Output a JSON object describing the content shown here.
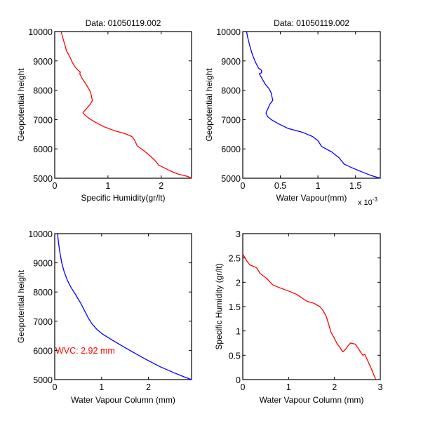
{
  "chart_data": [
    {
      "id": "tl",
      "type": "line",
      "title": "Data: 01050119.002",
      "xlabel": "Specific Humidity(gr/lt)",
      "ylabel": "Geopotential height",
      "xlim": [
        0,
        2.57
      ],
      "ylim": [
        5000,
        10000
      ],
      "xticks": [
        0,
        1,
        2
      ],
      "xtick_labels": [
        "0",
        "1",
        "2"
      ],
      "yticks": [
        5000,
        6000,
        7000,
        8000,
        9000,
        10000
      ],
      "ytick_labels": [
        "5000",
        "6000",
        "7000",
        "8000",
        "9000",
        "10000"
      ],
      "x_multiplier": "",
      "grid": false,
      "series": [
        {
          "name": "specific-humidity-profile",
          "color": "#ff0000",
          "x": [
            0.12,
            0.15,
            0.19,
            0.22,
            0.28,
            0.33,
            0.38,
            0.44,
            0.48,
            0.47,
            0.51,
            0.57,
            0.63,
            0.67,
            0.69,
            0.7,
            0.71,
            0.67,
            0.62,
            0.57,
            0.53,
            0.58,
            0.66,
            0.77,
            0.92,
            1.12,
            1.32,
            1.45,
            1.5,
            1.55,
            1.68,
            1.78,
            1.88,
            1.95,
            2.05,
            2.18,
            2.32,
            2.5,
            2.57
          ],
          "y": [
            10000,
            9800,
            9550,
            9350,
            9150,
            8950,
            8800,
            8680,
            8620,
            8560,
            8420,
            8250,
            8080,
            7950,
            7800,
            7700,
            7660,
            7530,
            7420,
            7320,
            7230,
            7130,
            7020,
            6900,
            6760,
            6620,
            6520,
            6420,
            6300,
            6100,
            5930,
            5780,
            5610,
            5450,
            5360,
            5240,
            5140,
            5060,
            5000
          ]
        }
      ]
    },
    {
      "id": "tr",
      "type": "line",
      "title": "Data: 01050119.002",
      "xlabel": "Water Vapour(mm)",
      "ylabel": "Geopotential height",
      "xlim": [
        0,
        0.00183
      ],
      "ylim": [
        5000,
        10000
      ],
      "xticks": [
        0,
        0.0005,
        0.001,
        0.0015
      ],
      "xtick_labels": [
        "0",
        "0.5",
        "1",
        "1.5"
      ],
      "yticks": [
        5000,
        6000,
        7000,
        8000,
        9000,
        10000
      ],
      "ytick_labels": [
        "5000",
        "6000",
        "7000",
        "8000",
        "9000",
        "10000"
      ],
      "x_multiplier": "x 10",
      "x_multiplier_exp": "-3",
      "grid": false,
      "series": [
        {
          "name": "water-vapour-profile",
          "color": "#0000ff",
          "x": [
            5e-05,
            7e-05,
            0.0001,
            0.00013,
            0.00017,
            0.00021,
            0.00025,
            0.00025,
            0.00022,
            0.00026,
            0.0003,
            0.00035,
            0.00038,
            0.00039,
            0.0004,
            0.00036,
            0.00034,
            0.00032,
            0.00031,
            0.00033,
            0.00039,
            0.00048,
            0.0006,
            0.0008,
            0.00093,
            0.001,
            0.00105,
            0.00118,
            0.00128,
            0.00135,
            0.00145,
            0.00158,
            0.0017,
            0.00183
          ],
          "y": [
            10000,
            9750,
            9450,
            9200,
            8950,
            8750,
            8680,
            8600,
            8560,
            8380,
            8200,
            8050,
            7900,
            7750,
            7660,
            7520,
            7400,
            7300,
            7220,
            7100,
            6980,
            6850,
            6700,
            6560,
            6420,
            6280,
            6080,
            5900,
            5700,
            5480,
            5360,
            5220,
            5100,
            5000
          ]
        }
      ]
    },
    {
      "id": "bl",
      "type": "line",
      "title": "",
      "xlabel": "Water Vapour Column (mm)",
      "ylabel": "Geopotential height",
      "xlim": [
        0,
        2.92
      ],
      "ylim": [
        5000,
        10000
      ],
      "xticks": [
        0,
        1,
        2
      ],
      "xtick_labels": [
        "0",
        "1",
        "2"
      ],
      "yticks": [
        5000,
        6000,
        7000,
        8000,
        9000,
        10000
      ],
      "ytick_labels": [
        "5000",
        "6000",
        "7000",
        "8000",
        "9000",
        "10000"
      ],
      "x_multiplier": "",
      "grid": false,
      "annotation": {
        "text": "WVC: 2.92 mm",
        "x": 0.02,
        "y": 6000,
        "color": "#ff0000"
      },
      "series": [
        {
          "name": "water-vapour-column",
          "color": "#0000ff",
          "x": [
            0.06,
            0.08,
            0.11,
            0.15,
            0.2,
            0.27,
            0.35,
            0.45,
            0.56,
            0.64,
            0.72,
            0.8,
            0.9,
            1.02,
            1.2,
            1.42,
            1.68,
            1.95,
            2.25,
            2.55,
            2.8,
            2.92
          ],
          "y": [
            10000,
            9700,
            9350,
            9000,
            8700,
            8400,
            8150,
            7900,
            7600,
            7350,
            7100,
            6900,
            6720,
            6560,
            6380,
            6170,
            5930,
            5690,
            5440,
            5230,
            5070,
            5000
          ]
        }
      ]
    },
    {
      "id": "br",
      "type": "line",
      "title": "",
      "xlabel": "Water Vapour Column (mm)",
      "ylabel": "Specific Humidity (gr/lt)",
      "xlim": [
        0,
        3
      ],
      "ylim": [
        0,
        3
      ],
      "xticks": [
        0,
        1,
        2,
        3
      ],
      "xtick_labels": [
        "0",
        "1",
        "2",
        "3"
      ],
      "yticks": [
        0,
        0.5,
        1,
        1.5,
        2,
        2.5,
        3
      ],
      "ytick_labels": [
        "0",
        "0.5",
        "1",
        "1.5",
        "2",
        "2.5",
        "3"
      ],
      "x_multiplier": "",
      "grid": false,
      "series": [
        {
          "name": "humidity-vs-column",
          "color": "#ff0000",
          "x": [
            0.0,
            0.08,
            0.15,
            0.3,
            0.38,
            0.52,
            0.65,
            0.8,
            1.0,
            1.18,
            1.3,
            1.4,
            1.55,
            1.68,
            1.75,
            1.82,
            1.88,
            1.92,
            1.98,
            2.05,
            2.12,
            2.18,
            2.24,
            2.3,
            2.35,
            2.45,
            2.52,
            2.58,
            2.62,
            2.66,
            2.72,
            2.8,
            2.88,
            2.9
          ],
          "y": [
            2.58,
            2.45,
            2.36,
            2.3,
            2.18,
            2.08,
            1.95,
            1.89,
            1.82,
            1.75,
            1.67,
            1.61,
            1.57,
            1.5,
            1.42,
            1.3,
            1.12,
            0.98,
            0.88,
            0.75,
            0.66,
            0.57,
            0.62,
            0.7,
            0.75,
            0.73,
            0.64,
            0.55,
            0.5,
            0.52,
            0.4,
            0.23,
            0.05,
            0.0
          ]
        }
      ]
    }
  ]
}
